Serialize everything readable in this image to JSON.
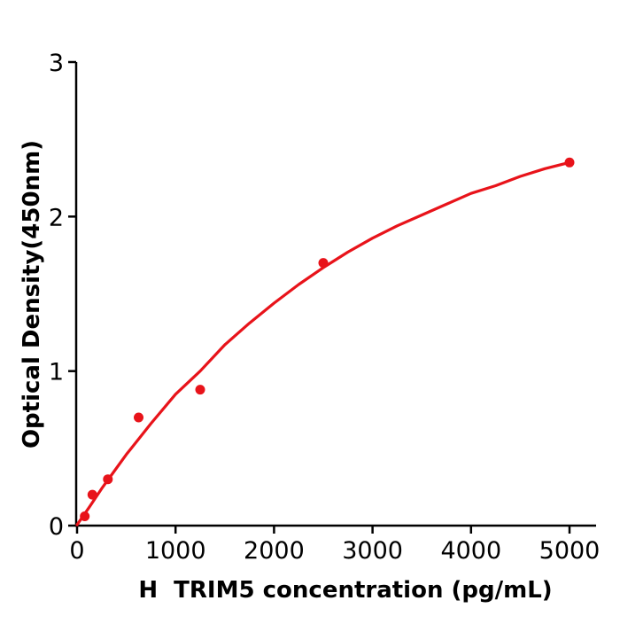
{
  "figure": {
    "background": "#ffffff",
    "title": ""
  },
  "chart_data": {
    "type": "scatter",
    "title": "",
    "xlabel": "H  TRIM5 concentration (pg/mL)",
    "ylabel": "Optical Density(450nm)",
    "xlim": [
      0,
      5270
    ],
    "ylim": [
      0,
      3
    ],
    "x_ticks": [
      0,
      1000,
      2000,
      3000,
      4000,
      5000
    ],
    "y_ticks": [
      0,
      1,
      2,
      3
    ],
    "grid": false,
    "legend_position": "none",
    "axis_color": "#000000",
    "series": [
      {
        "name": "standard-points",
        "type": "scatter",
        "color": "#e8131a",
        "marker": "circle",
        "points": [
          [
            78,
            0.06
          ],
          [
            156,
            0.2
          ],
          [
            313,
            0.3
          ],
          [
            625,
            0.7
          ],
          [
            1250,
            0.88
          ],
          [
            2500,
            1.7
          ],
          [
            5000,
            2.35
          ]
        ]
      },
      {
        "name": "fitted-curve",
        "type": "line",
        "color": "#e8131a",
        "points": [
          [
            0,
            0.005
          ],
          [
            125,
            0.12
          ],
          [
            250,
            0.24
          ],
          [
            375,
            0.35
          ],
          [
            500,
            0.46
          ],
          [
            625,
            0.56
          ],
          [
            750,
            0.66
          ],
          [
            1000,
            0.85
          ],
          [
            1250,
            1.0
          ],
          [
            1500,
            1.17
          ],
          [
            1750,
            1.31
          ],
          [
            2000,
            1.44
          ],
          [
            2250,
            1.56
          ],
          [
            2500,
            1.67
          ],
          [
            2750,
            1.77
          ],
          [
            3000,
            1.86
          ],
          [
            3250,
            1.94
          ],
          [
            3500,
            2.01
          ],
          [
            3750,
            2.08
          ],
          [
            4000,
            2.15
          ],
          [
            4250,
            2.2
          ],
          [
            4500,
            2.26
          ],
          [
            4750,
            2.31
          ],
          [
            5000,
            2.35
          ]
        ]
      }
    ]
  }
}
